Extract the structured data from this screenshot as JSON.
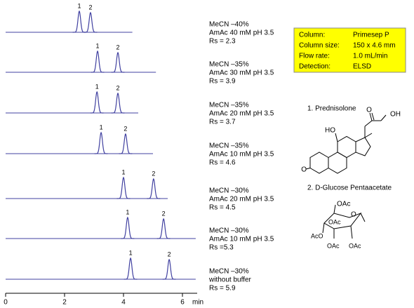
{
  "chart_data": {
    "type": "chromatogram",
    "xlim": [
      0,
      6.5
    ],
    "xticks": [
      0,
      2,
      4,
      6
    ],
    "x_unit": "min",
    "color": "#4040a0",
    "traces": [
      {
        "conditions": [
          "MeCN –40%",
          "AmAc 40 mM pH 3.5",
          "Rs = 2.3"
        ],
        "end": 4.3,
        "peaks": [
          {
            "label": "1",
            "time": 2.5
          },
          {
            "label": "2",
            "time": 2.88
          }
        ]
      },
      {
        "conditions": [
          "MeCN –35%",
          "AmAc 30 mM pH 3.5",
          "Rs = 3.9"
        ],
        "end": 5.1,
        "peaks": [
          {
            "label": "1",
            "time": 3.12
          },
          {
            "label": "2",
            "time": 3.81
          }
        ]
      },
      {
        "conditions": [
          "MeCN –35%",
          "AmAc 20 mM pH 3.5",
          "Rs = 3.7"
        ],
        "end": 4.5,
        "peaks": [
          {
            "label": "1",
            "time": 3.1
          },
          {
            "label": "2",
            "time": 3.81
          }
        ]
      },
      {
        "conditions": [
          "MeCN –35%",
          "AmAc 10 mM pH 3.5",
          "Rs = 4.6"
        ],
        "end": 5.0,
        "peaks": [
          {
            "label": "1",
            "time": 3.24
          },
          {
            "label": "2",
            "time": 4.07
          }
        ]
      },
      {
        "conditions": [
          "MeCN –30%",
          "AmAc 20 mM pH 3.5",
          "Rs = 4.5"
        ],
        "end": 5.5,
        "peaks": [
          {
            "label": "1",
            "time": 4.0
          },
          {
            "label": "2",
            "time": 5.02
          }
        ]
      },
      {
        "conditions": [
          "MeCN –30%",
          "AmAc 10 mM pH 3.5",
          "Rs =5.3"
        ],
        "end": 6.45,
        "peaks": [
          {
            "label": "1",
            "time": 4.14
          },
          {
            "label": "2",
            "time": 5.36
          }
        ]
      },
      {
        "conditions": [
          "MeCN –30%",
          "without  buffer",
          "Rs = 5.9"
        ],
        "end": 6.45,
        "peaks": [
          {
            "label": "1",
            "time": 4.24
          },
          {
            "label": "2",
            "time": 5.55
          }
        ]
      }
    ]
  },
  "info_box": {
    "rows": [
      [
        "Column:",
        "Primesep P"
      ],
      [
        "Column size:",
        "150 x 4.6 mm"
      ],
      [
        "Flow rate:",
        "1.0  mL/min"
      ],
      [
        "Detection:",
        "ELSD"
      ]
    ]
  },
  "compounds": [
    {
      "label": "1.  Prednisolone",
      "atoms": [
        "O",
        "OH",
        "HO",
        "O"
      ]
    },
    {
      "label": "2.  D-Glucose Pentaacetate",
      "atoms": [
        "OAc",
        "O",
        "OAc",
        "AcO",
        "OAc",
        "OAc"
      ]
    }
  ]
}
